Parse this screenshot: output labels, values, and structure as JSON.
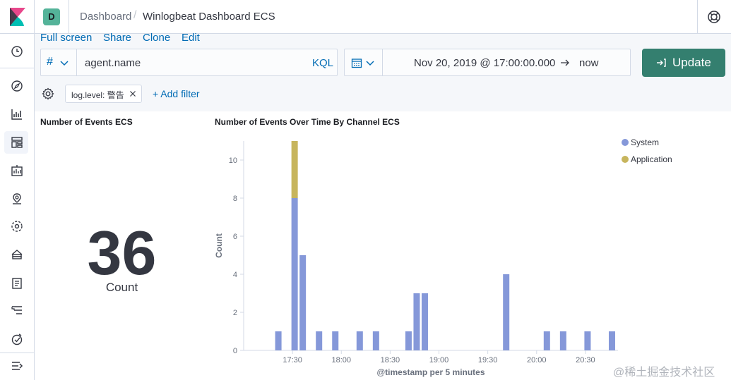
{
  "header": {
    "space_initial": "D",
    "breadcrumb_root": "Dashboard",
    "breadcrumb_current": "Winlogbeat Dashboard ECS"
  },
  "toolbar": {
    "links": [
      "Full screen",
      "Share",
      "Clone",
      "Edit"
    ]
  },
  "query": {
    "language_symbol": "#",
    "value": "agent.name",
    "language_label": "KQL"
  },
  "time": {
    "start": "Nov 20, 2019 @ 17:00:00.000",
    "end": "now",
    "update_label": "Update"
  },
  "filters": {
    "pills": [
      "log.level: 警告"
    ],
    "add_label": "+ Add filter"
  },
  "metric_panel": {
    "title": "Number of Events ECS",
    "value": "36",
    "label": "Count"
  },
  "chart_panel": {
    "title": "Number of Events Over Time By Channel ECS"
  },
  "colors": {
    "system": "#8598d9",
    "application": "#c7b55d",
    "accent": "#006bb4",
    "update": "#347f6f"
  },
  "chart_data": {
    "type": "bar",
    "stacked": true,
    "xlabel": "@timestamp per 5 minutes",
    "ylabel": "Count",
    "ylim": [
      0,
      11
    ],
    "y_ticks": [
      0,
      2,
      4,
      6,
      8,
      10
    ],
    "x_tick_labels": [
      "17:30",
      "18:00",
      "18:30",
      "19:00",
      "19:30",
      "20:00",
      "20:30"
    ],
    "legend_position": "top-right",
    "categories": [
      "17:20",
      "17:30",
      "17:35",
      "17:45",
      "17:55",
      "18:10",
      "18:20",
      "18:40",
      "18:45",
      "18:50",
      "19:40",
      "20:05",
      "20:15",
      "20:30",
      "20:45"
    ],
    "series": [
      {
        "name": "System",
        "values": [
          1,
          8,
          5,
          1,
          1,
          1,
          1,
          1,
          3,
          3,
          4,
          1,
          1,
          1,
          1
        ]
      },
      {
        "name": "Application",
        "values": [
          0,
          3,
          0,
          0,
          0,
          0,
          0,
          0,
          0,
          0,
          0,
          0,
          0,
          0,
          0
        ]
      }
    ]
  },
  "watermark": "@稀土掘金技术社区"
}
